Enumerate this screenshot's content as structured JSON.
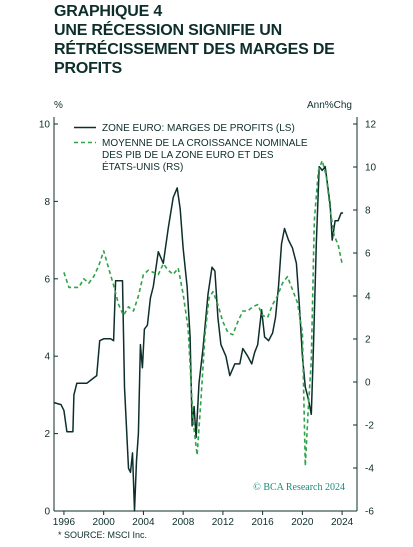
{
  "header": {
    "title": "GRAPHIQUE 4\nUNE RÉCESSION SIGNIFIE UN\nRÉTRÉCISSEMENT DES MARGES DE\nPROFITS"
  },
  "footer": {
    "source": "* SOURCE: MSCI Inc.",
    "watermark": "© BCA Research 2024"
  },
  "colors": {
    "axis": "#0d2e2b",
    "solid_series": "#0d2e2b",
    "dashed_series": "#2ea34a",
    "watermark": "#1b8a78"
  },
  "chart_data": {
    "type": "line",
    "left_unit": "%",
    "right_unit": "Ann%Chg",
    "x_ticks": [
      "1996",
      "2000",
      "2004",
      "2008",
      "2012",
      "2016",
      "2020",
      "2024"
    ],
    "x_range": [
      1995,
      2025.5
    ],
    "left_ticks": [
      "0",
      "2",
      "4",
      "6",
      "8",
      "10"
    ],
    "right_ticks": [
      "-6",
      "-4",
      "-2",
      "0",
      "2",
      "4",
      "6",
      "8",
      "10",
      "12"
    ],
    "ylim_left": [
      0,
      10
    ],
    "ylim_right": [
      -6,
      12
    ],
    "grid": false,
    "legend": {
      "placement": "top-left",
      "entries": [
        "ZONE EURO: MARGES DE PROFITS (LS)",
        "MOYENNE DE LA CROISSANCE NOMINALE\nDES PIB DE LA ZONE EURO ET DES\nÉTATS-UNIS (RS)"
      ]
    },
    "series": [
      {
        "name": "ZONE EURO: MARGES DE PROFITS (LS)",
        "axis": "left",
        "style": "solid",
        "points": [
          [
            1995.0,
            2.8
          ],
          [
            1995.7,
            2.75
          ],
          [
            1996.0,
            2.6
          ],
          [
            1996.3,
            2.05
          ],
          [
            1996.9,
            2.05
          ],
          [
            1997.0,
            3.0
          ],
          [
            1997.3,
            3.3
          ],
          [
            1998.3,
            3.3
          ],
          [
            1998.8,
            3.4
          ],
          [
            1999.3,
            3.5
          ],
          [
            1999.6,
            4.4
          ],
          [
            2000.0,
            4.45
          ],
          [
            2000.7,
            4.45
          ],
          [
            2001.0,
            4.4
          ],
          [
            2001.2,
            5.95
          ],
          [
            2001.9,
            5.95
          ],
          [
            2002.1,
            3.2
          ],
          [
            2002.5,
            1.1
          ],
          [
            2002.7,
            1.0
          ],
          [
            2002.9,
            1.5
          ],
          [
            2003.1,
            0.0
          ],
          [
            2003.3,
            1.3
          ],
          [
            2003.5,
            2.0
          ],
          [
            2003.7,
            4.3
          ],
          [
            2003.9,
            3.7
          ],
          [
            2004.1,
            4.7
          ],
          [
            2004.4,
            4.8
          ],
          [
            2004.7,
            5.5
          ],
          [
            2005.0,
            5.8
          ],
          [
            2005.5,
            6.7
          ],
          [
            2006.0,
            6.4
          ],
          [
            2006.5,
            7.3
          ],
          [
            2007.0,
            8.1
          ],
          [
            2007.4,
            8.35
          ],
          [
            2007.7,
            7.8
          ],
          [
            2008.0,
            6.8
          ],
          [
            2008.4,
            5.8
          ],
          [
            2008.7,
            4.5
          ],
          [
            2008.9,
            2.2
          ],
          [
            2009.1,
            2.7
          ],
          [
            2009.3,
            1.9
          ],
          [
            2009.6,
            3.3
          ],
          [
            2010.0,
            4.2
          ],
          [
            2010.5,
            5.6
          ],
          [
            2010.9,
            6.3
          ],
          [
            2011.2,
            6.2
          ],
          [
            2011.5,
            5.0
          ],
          [
            2011.8,
            4.3
          ],
          [
            2012.3,
            4.0
          ],
          [
            2012.7,
            3.5
          ],
          [
            2013.2,
            3.8
          ],
          [
            2013.7,
            3.8
          ],
          [
            2014.0,
            4.2
          ],
          [
            2014.5,
            4.0
          ],
          [
            2014.9,
            3.8
          ],
          [
            2015.2,
            4.1
          ],
          [
            2015.5,
            4.3
          ],
          [
            2015.9,
            5.2
          ],
          [
            2016.2,
            4.5
          ],
          [
            2016.6,
            4.4
          ],
          [
            2017.0,
            4.6
          ],
          [
            2017.3,
            5.0
          ],
          [
            2017.6,
            5.8
          ],
          [
            2017.9,
            6.9
          ],
          [
            2018.2,
            7.3
          ],
          [
            2018.6,
            7.0
          ],
          [
            2019.0,
            6.8
          ],
          [
            2019.4,
            6.4
          ],
          [
            2019.7,
            5.3
          ],
          [
            2020.0,
            4.0
          ],
          [
            2020.3,
            3.2
          ],
          [
            2020.6,
            2.9
          ],
          [
            2020.9,
            2.5
          ],
          [
            2021.1,
            4.1
          ],
          [
            2021.4,
            6.9
          ],
          [
            2021.7,
            8.9
          ],
          [
            2022.0,
            8.8
          ],
          [
            2022.3,
            8.9
          ],
          [
            2022.5,
            8.5
          ],
          [
            2022.8,
            7.9
          ],
          [
            2023.0,
            7.0
          ],
          [
            2023.3,
            7.5
          ],
          [
            2023.6,
            7.5
          ],
          [
            2023.9,
            7.7
          ],
          [
            2024.1,
            7.7
          ]
        ]
      },
      {
        "name": "MOYENNE DE LA CROISSANCE NOMINALE DES PIB DE LA ZONE EURO ET DES ÉTATS-UNIS (RS)",
        "axis": "right",
        "style": "dashed",
        "points": [
          [
            1996.0,
            5.1
          ],
          [
            1996.5,
            4.4
          ],
          [
            1997.0,
            4.4
          ],
          [
            1997.5,
            4.4
          ],
          [
            1998.0,
            4.8
          ],
          [
            1998.5,
            4.6
          ],
          [
            1999.0,
            4.9
          ],
          [
            1999.5,
            5.4
          ],
          [
            2000.0,
            6.1
          ],
          [
            2000.5,
            5.3
          ],
          [
            2001.0,
            4.5
          ],
          [
            2001.5,
            3.6
          ],
          [
            2002.0,
            3.1
          ],
          [
            2002.5,
            3.5
          ],
          [
            2003.0,
            3.3
          ],
          [
            2003.5,
            4.0
          ],
          [
            2004.0,
            5.0
          ],
          [
            2004.5,
            5.2
          ],
          [
            2005.0,
            5.1
          ],
          [
            2005.5,
            5.0
          ],
          [
            2006.0,
            5.5
          ],
          [
            2006.5,
            5.2
          ],
          [
            2007.0,
            5.0
          ],
          [
            2007.5,
            5.3
          ],
          [
            2008.0,
            4.1
          ],
          [
            2008.5,
            2.5
          ],
          [
            2009.0,
            -1.8
          ],
          [
            2009.4,
            -3.4
          ],
          [
            2009.8,
            -0.8
          ],
          [
            2010.2,
            2.2
          ],
          [
            2010.6,
            3.9
          ],
          [
            2011.0,
            4.2
          ],
          [
            2011.5,
            3.6
          ],
          [
            2012.0,
            2.8
          ],
          [
            2012.5,
            2.3
          ],
          [
            2013.0,
            2.2
          ],
          [
            2013.5,
            2.8
          ],
          [
            2014.0,
            3.3
          ],
          [
            2014.5,
            3.3
          ],
          [
            2015.0,
            3.5
          ],
          [
            2015.5,
            3.6
          ],
          [
            2016.0,
            3.1
          ],
          [
            2016.5,
            3.0
          ],
          [
            2017.0,
            3.6
          ],
          [
            2017.5,
            4.0
          ],
          [
            2018.0,
            4.6
          ],
          [
            2018.5,
            4.9
          ],
          [
            2019.0,
            4.3
          ],
          [
            2019.5,
            3.7
          ],
          [
            2020.0,
            2.3
          ],
          [
            2020.3,
            -3.9
          ],
          [
            2020.6,
            -1.2
          ],
          [
            2020.9,
            1.0
          ],
          [
            2021.2,
            7.5
          ],
          [
            2021.6,
            9.8
          ],
          [
            2022.0,
            10.3
          ],
          [
            2022.4,
            9.6
          ],
          [
            2022.8,
            8.0
          ],
          [
            2023.2,
            6.8
          ],
          [
            2023.6,
            6.4
          ],
          [
            2024.0,
            5.5
          ]
        ]
      }
    ]
  }
}
